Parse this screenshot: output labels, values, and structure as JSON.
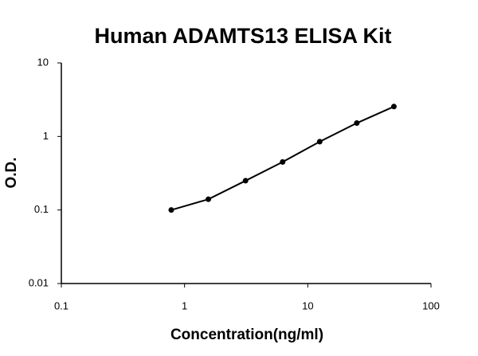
{
  "chart_data": {
    "type": "line",
    "title": "Human ADAMTS13 ELISA Kit",
    "xlabel": "Concentration(ng/ml)",
    "ylabel": "O.D.",
    "x": [
      0.78,
      1.56,
      3.125,
      6.25,
      12.5,
      25,
      50
    ],
    "series": [
      {
        "color": "#000000",
        "values": [
          0.1,
          0.14,
          0.25,
          0.45,
          0.85,
          1.52,
          2.55
        ]
      }
    ],
    "xlim": [
      0.1,
      100
    ],
    "ylim": [
      0.01,
      10
    ],
    "xticks": [
      0.1,
      1,
      10,
      100
    ],
    "yticks": [
      0.01,
      0.1,
      1,
      10
    ],
    "xscale": "log",
    "yscale": "log",
    "grid": false
  }
}
